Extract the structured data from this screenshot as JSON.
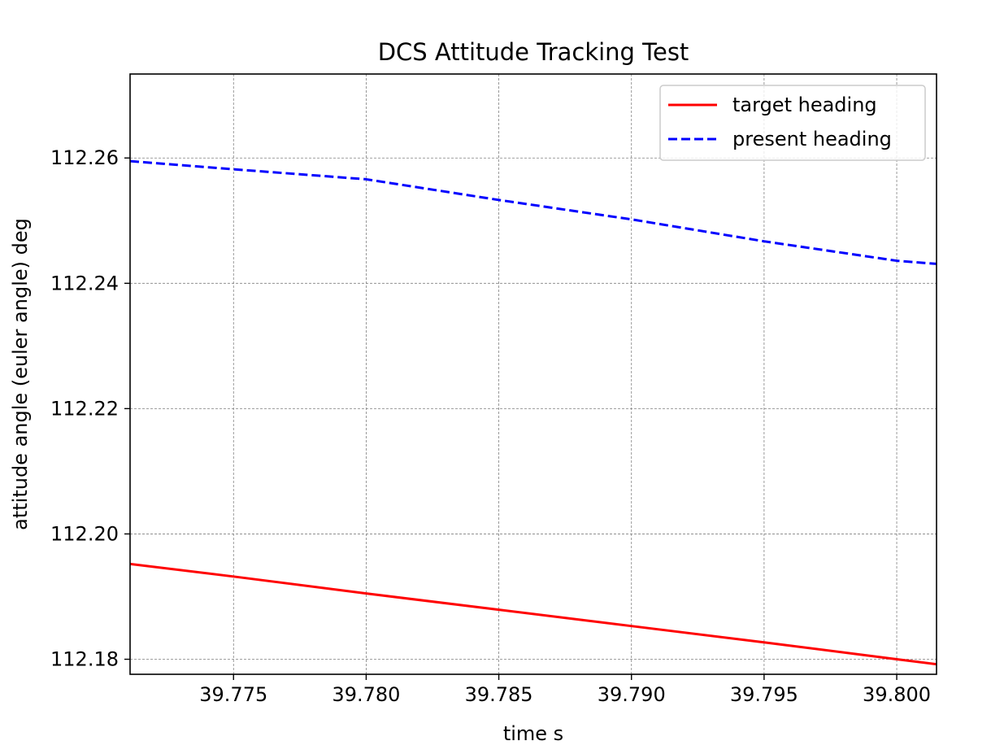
{
  "chart_data": {
    "type": "line",
    "title": "DCS Attitude Tracking Test",
    "xlabel": "time s",
    "ylabel": "attitude angle (euler angle) deg",
    "xlim": [
      39.7711,
      39.8015
    ],
    "ylim": [
      112.1776,
      112.2734
    ],
    "xticks": [
      39.775,
      39.78,
      39.785,
      39.79,
      39.795,
      39.8
    ],
    "xtick_labels": [
      "39.775",
      "39.780",
      "39.785",
      "39.790",
      "39.795",
      "39.800"
    ],
    "yticks": [
      112.18,
      112.2,
      112.22,
      112.24,
      112.26
    ],
    "ytick_labels": [
      "112.18",
      "112.20",
      "112.22",
      "112.24",
      "112.26"
    ],
    "grid": true,
    "legend_position": "top-right",
    "series": [
      {
        "name": "target heading",
        "color": "#ff0000",
        "style": "solid",
        "x": [
          39.7711,
          39.775,
          39.78,
          39.785,
          39.79,
          39.795,
          39.8,
          39.8015
        ],
        "y": [
          112.1952,
          112.1932,
          112.1905,
          112.1879,
          112.1853,
          112.1827,
          112.18,
          112.1792
        ]
      },
      {
        "name": "present heading",
        "color": "#0000ff",
        "style": "dashed",
        "x": [
          39.7711,
          39.775,
          39.78,
          39.785,
          39.79,
          39.795,
          39.8,
          39.8015
        ],
        "y": [
          112.2595,
          112.2582,
          112.2566,
          112.2533,
          112.2502,
          112.2467,
          112.2436,
          112.2431
        ]
      }
    ]
  }
}
